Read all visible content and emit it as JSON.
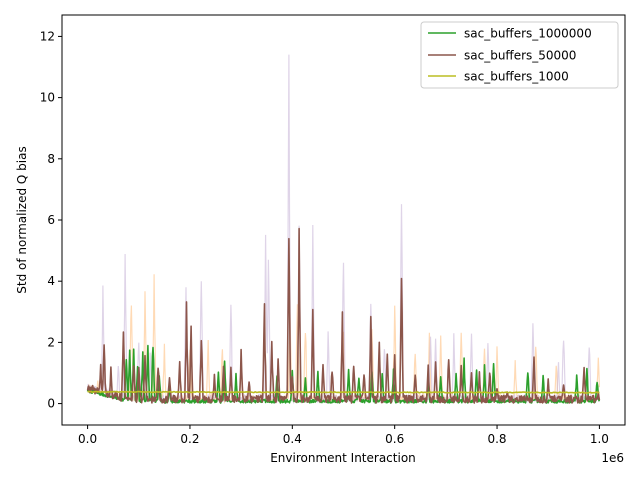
{
  "chart_data": {
    "type": "line",
    "xlabel": "Environment Interaction",
    "ylabel": "Std of normalized Q bias",
    "x_offset_label": "1e6",
    "xlim": [
      -0.05,
      1.05
    ],
    "ylim": [
      -0.7,
      12.7
    ],
    "x_ticks": [
      0.0,
      0.2,
      0.4,
      0.6,
      0.8,
      1.0
    ],
    "x_tick_labels": [
      "0.0",
      "0.2",
      "0.4",
      "0.6",
      "0.8",
      "1.0"
    ],
    "y_ticks": [
      0,
      2,
      4,
      6,
      8,
      10,
      12
    ],
    "y_tick_labels": [
      "0",
      "2",
      "4",
      "6",
      "8",
      "10",
      "12"
    ],
    "legend_position": "upper right",
    "series": [
      {
        "name": "sac_buffers_1000000",
        "color": "#2ca02c",
        "shadow_color": "#ffbb78",
        "spikes": [
          [
            0.075,
            1.8
          ],
          [
            0.082,
            2.1
          ],
          [
            0.09,
            1.9
          ],
          [
            0.098,
            1.6
          ],
          [
            0.108,
            1.7
          ],
          [
            0.118,
            2.0
          ],
          [
            0.128,
            2.3
          ],
          [
            0.14,
            1.1
          ],
          [
            0.16,
            0.6
          ],
          [
            0.255,
            1.1
          ],
          [
            0.268,
            1.6
          ],
          [
            0.29,
            1.0
          ],
          [
            0.37,
            0.9
          ],
          [
            0.4,
            1.1
          ],
          [
            0.425,
            1.0
          ],
          [
            0.45,
            1.1
          ],
          [
            0.51,
            1.2
          ],
          [
            0.53,
            1.1
          ],
          [
            0.555,
            1.2
          ],
          [
            0.575,
            1.1
          ],
          [
            0.598,
            1.2
          ],
          [
            0.665,
            0.9
          ],
          [
            0.69,
            1.1
          ],
          [
            0.72,
            1.2
          ],
          [
            0.735,
            1.5
          ],
          [
            0.76,
            1.3
          ],
          [
            0.775,
            1.3
          ],
          [
            0.793,
            1.5
          ],
          [
            0.86,
            1.3
          ],
          [
            0.89,
            1.0
          ],
          [
            0.955,
            1.0
          ],
          [
            0.975,
            1.2
          ],
          [
            0.995,
            0.9
          ]
        ],
        "shadow_spikes": [
          [
            0.02,
            0.9
          ],
          [
            0.085,
            4.0
          ],
          [
            0.112,
            4.0
          ],
          [
            0.13,
            4.4
          ],
          [
            0.15,
            2.1
          ],
          [
            0.2,
            2.0
          ],
          [
            0.235,
            2.1
          ],
          [
            0.263,
            2.1
          ],
          [
            0.3,
            1.3
          ],
          [
            0.345,
            3.1
          ],
          [
            0.395,
            3.5
          ],
          [
            0.41,
            3.8
          ],
          [
            0.425,
            3.0
          ],
          [
            0.5,
            2.6
          ],
          [
            0.555,
            2.9
          ],
          [
            0.6,
            3.5
          ],
          [
            0.64,
            2.0
          ],
          [
            0.668,
            2.6
          ],
          [
            0.69,
            2.3
          ],
          [
            0.73,
            2.9
          ],
          [
            0.775,
            2.2
          ],
          [
            0.8,
            2.0
          ],
          [
            0.835,
            1.5
          ],
          [
            0.875,
            2.3
          ],
          [
            0.915,
            1.5
          ],
          [
            0.97,
            1.4
          ],
          [
            0.998,
            1.8
          ]
        ]
      },
      {
        "name": "sac_buffers_50000",
        "color": "#8c564b",
        "shadow_color": "#c5b0d5",
        "spikes": [
          [
            0.01,
            0.7
          ],
          [
            0.025,
            1.4
          ],
          [
            0.032,
            2.1
          ],
          [
            0.045,
            1.2
          ],
          [
            0.07,
            2.6
          ],
          [
            0.09,
            1.5
          ],
          [
            0.1,
            1.3
          ],
          [
            0.112,
            1.7
          ],
          [
            0.138,
            1.5
          ],
          [
            0.16,
            1.1
          ],
          [
            0.18,
            1.4
          ],
          [
            0.193,
            3.4
          ],
          [
            0.202,
            2.8
          ],
          [
            0.222,
            2.4
          ],
          [
            0.248,
            1.0
          ],
          [
            0.265,
            1.3
          ],
          [
            0.28,
            1.2
          ],
          [
            0.3,
            1.8
          ],
          [
            0.315,
            0.9
          ],
          [
            0.345,
            3.3
          ],
          [
            0.36,
            2.2
          ],
          [
            0.372,
            1.6
          ],
          [
            0.393,
            6.0
          ],
          [
            0.4,
            1.0
          ],
          [
            0.413,
            5.8
          ],
          [
            0.44,
            3.2
          ],
          [
            0.46,
            1.5
          ],
          [
            0.478,
            1.3
          ],
          [
            0.498,
            3.0
          ],
          [
            0.52,
            1.6
          ],
          [
            0.54,
            1.2
          ],
          [
            0.553,
            2.9
          ],
          [
            0.57,
            2.3
          ],
          [
            0.585,
            1.9
          ],
          [
            0.6,
            1.6
          ],
          [
            0.613,
            4.4
          ],
          [
            0.64,
            1.2
          ],
          [
            0.665,
            1.3
          ],
          [
            0.68,
            1.6
          ],
          [
            0.705,
            1.7
          ],
          [
            0.73,
            1.3
          ],
          [
            0.75,
            1.2
          ],
          [
            0.765,
            1.1
          ],
          [
            0.785,
            1.3
          ],
          [
            0.8,
            0.6
          ],
          [
            0.82,
            0.5
          ],
          [
            0.872,
            1.7
          ],
          [
            0.9,
            0.9
          ],
          [
            0.93,
            0.8
          ],
          [
            0.97,
            1.3
          ],
          [
            0.998,
            0.4
          ]
        ],
        "shadow_spikes": [
          [
            0.03,
            4.0
          ],
          [
            0.06,
            1.5
          ],
          [
            0.073,
            5.0
          ],
          [
            0.1,
            2.5
          ],
          [
            0.122,
            2.0
          ],
          [
            0.192,
            4.1
          ],
          [
            0.222,
            4.8
          ],
          [
            0.28,
            3.7
          ],
          [
            0.348,
            6.4
          ],
          [
            0.353,
            5.8
          ],
          [
            0.393,
            12.1
          ],
          [
            0.413,
            7.3
          ],
          [
            0.44,
            6.3
          ],
          [
            0.47,
            2.6
          ],
          [
            0.5,
            6.1
          ],
          [
            0.553,
            4.0
          ],
          [
            0.58,
            2.3
          ],
          [
            0.613,
            8.1
          ],
          [
            0.67,
            2.6
          ],
          [
            0.68,
            2.4
          ],
          [
            0.715,
            2.4
          ],
          [
            0.75,
            2.5
          ],
          [
            0.782,
            2.6
          ],
          [
            0.87,
            3.2
          ],
          [
            0.92,
            1.4
          ],
          [
            0.93,
            2.6
          ],
          [
            0.98,
            2.4
          ]
        ]
      },
      {
        "name": "sac_buffers_1000",
        "color": "#bcbd22",
        "start_value": 0.38,
        "end_value": 0.36
      }
    ]
  }
}
